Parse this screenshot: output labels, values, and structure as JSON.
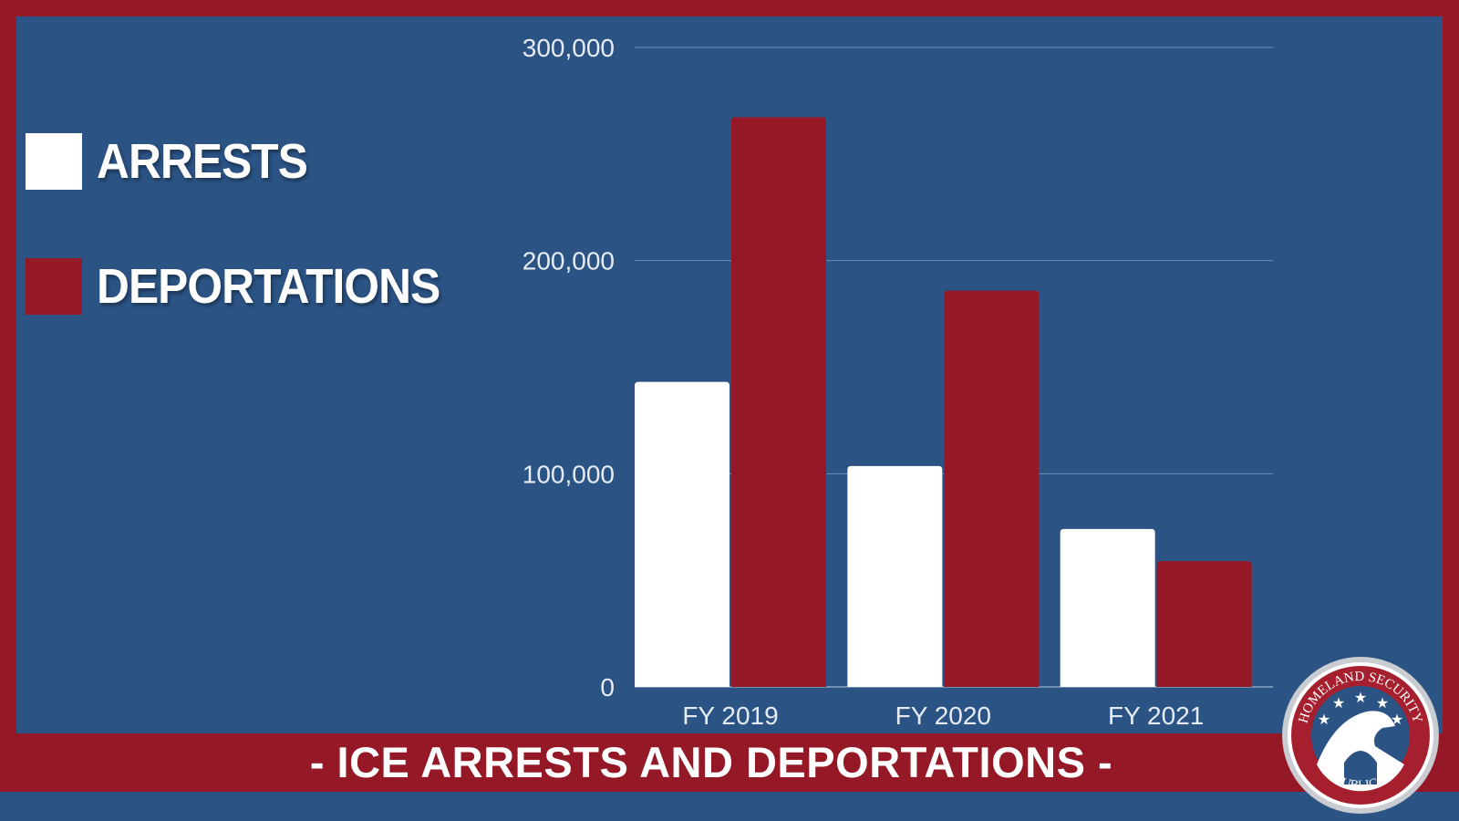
{
  "title": "- ICE ARRESTS AND DEPORTATIONS -",
  "logo": {
    "top_text": "HOMELAND SECURITY",
    "bottom_text": "REPUBLICANS"
  },
  "colors": {
    "background": "#2b5384",
    "accent_red": "#951827",
    "white": "#ffffff"
  },
  "chart_data": {
    "type": "bar",
    "title": "ICE Arrests and Deportations",
    "categories": [
      "FY 2019",
      "FY 2020",
      "FY 2021"
    ],
    "series": [
      {
        "name": "ARRESTS",
        "color": "#ffffff",
        "values": [
          143099,
          103603,
          74082
        ]
      },
      {
        "name": "DEPORTATIONS",
        "color": "#951827",
        "values": [
          267258,
          185884,
          59011
        ]
      }
    ],
    "ylim": [
      0,
      300000
    ],
    "yticks": [
      0,
      100000,
      200000,
      300000
    ],
    "ytick_labels": [
      "0",
      "100,000",
      "200,000",
      "300,000"
    ],
    "grid": true,
    "legend_placement": "left",
    "xlabel": "",
    "ylabel": ""
  }
}
